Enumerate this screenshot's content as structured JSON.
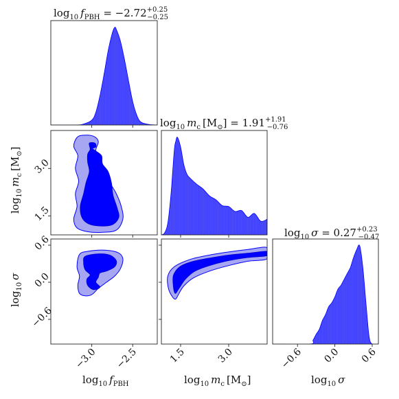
{
  "chart_data": [
    {
      "type": "area",
      "panel": "marginal-fpbh",
      "title": "log₁₀ f_PBH = −2.72",
      "title_main": "log",
      "title_sub": "10",
      "title_var": "f",
      "title_var_sub": "PBH",
      "title_value": " = −2.72",
      "title_err_plus": "+0.25",
      "title_err_minus": "−0.25",
      "color": "#0000ff",
      "fill_opacity": 0.75,
      "xlim": [
        -3.5,
        -2.2
      ],
      "x": [
        -3.5,
        -3.2,
        -3.1,
        -3.0,
        -2.95,
        -2.9,
        -2.85,
        -2.8,
        -2.75,
        -2.72,
        -2.7,
        -2.65,
        -2.6,
        -2.55,
        -2.5,
        -2.45,
        -2.4,
        -2.3,
        -2.2
      ],
      "y": [
        0.0,
        0.0,
        0.01,
        0.05,
        0.13,
        0.3,
        0.52,
        0.76,
        0.94,
        1.0,
        0.98,
        0.86,
        0.67,
        0.45,
        0.24,
        0.1,
        0.03,
        0.005,
        0.0
      ]
    },
    {
      "type": "area",
      "panel": "marginal-mc",
      "title_main": "log",
      "title_sub": "10",
      "title_var": "m",
      "title_var_sub": "c",
      "title_unit": "[M",
      "title_unit_sub": "⊙",
      "title_unit_close": "]",
      "title_value": " = 1.91",
      "title_err_plus": "+1.91",
      "title_err_minus": "−0.76",
      "color": "#0000ff",
      "fill_opacity": 0.75,
      "xlim": [
        0.9,
        4.2
      ],
      "x": [
        0.9,
        1.0,
        1.1,
        1.2,
        1.3,
        1.35,
        1.4,
        1.5,
        1.6,
        1.7,
        1.8,
        2.0,
        2.2,
        2.4,
        2.6,
        2.8,
        3.0,
        3.2,
        3.4,
        3.6,
        3.8,
        4.0,
        4.2
      ],
      "y": [
        0.0,
        0.02,
        0.12,
        0.42,
        0.86,
        0.96,
        1.0,
        0.9,
        0.72,
        0.62,
        0.58,
        0.52,
        0.47,
        0.4,
        0.36,
        0.3,
        0.29,
        0.24,
        0.25,
        0.18,
        0.22,
        0.14,
        0.16
      ]
    },
    {
      "type": "area",
      "panel": "marginal-sigma",
      "title_main": "log",
      "title_sub": "10",
      "title_var": "σ",
      "title_value": " = 0.27",
      "title_err_plus": "+0.23",
      "title_err_minus": "−0.47",
      "color": "#0000ff",
      "fill_opacity": 0.75,
      "xlim": [
        -1.0,
        0.7
      ],
      "x": [
        -1.0,
        -0.4,
        -0.35,
        -0.3,
        -0.25,
        -0.2,
        -0.15,
        -0.1,
        -0.05,
        0.0,
        0.05,
        0.1,
        0.15,
        0.2,
        0.25,
        0.3,
        0.35,
        0.4,
        0.45,
        0.5,
        0.55,
        0.6,
        0.7
      ],
      "y": [
        0.0,
        0.0,
        0.04,
        0.1,
        0.15,
        0.24,
        0.3,
        0.38,
        0.42,
        0.48,
        0.56,
        0.6,
        0.66,
        0.72,
        0.78,
        0.88,
        0.96,
        1.0,
        0.78,
        0.42,
        0.08,
        0.0,
        0.0
      ]
    },
    {
      "type": "contour",
      "panel": "fpbh-vs-mc",
      "xlim": [
        -3.5,
        -2.2
      ],
      "ylim": [
        0.9,
        4.2
      ],
      "outer_contour": [
        [
          -3.18,
          3.98
        ],
        [
          -3.1,
          4.05
        ],
        [
          -2.98,
          4.02
        ],
        [
          -2.92,
          3.85
        ],
        [
          -2.95,
          3.55
        ],
        [
          -2.88,
          3.25
        ],
        [
          -2.86,
          2.9
        ],
        [
          -2.78,
          2.55
        ],
        [
          -2.7,
          2.2
        ],
        [
          -2.64,
          1.8
        ],
        [
          -2.62,
          1.4
        ],
        [
          -2.7,
          1.05
        ],
        [
          -2.88,
          0.98
        ],
        [
          -3.05,
          1.0
        ],
        [
          -3.18,
          1.12
        ],
        [
          -3.22,
          1.4
        ],
        [
          -3.18,
          1.8
        ],
        [
          -3.2,
          2.2
        ],
        [
          -3.16,
          2.6
        ],
        [
          -3.2,
          3.0
        ],
        [
          -3.17,
          3.4
        ],
        [
          -3.22,
          3.7
        ]
      ],
      "inner_contour": [
        [
          -3.03,
          3.8
        ],
        [
          -2.96,
          3.8
        ],
        [
          -2.95,
          3.68
        ],
        [
          -2.99,
          3.63
        ],
        [
          -2.95,
          3.55
        ],
        [
          -2.88,
          3.4
        ],
        [
          -2.87,
          3.15
        ],
        [
          -2.8,
          2.9
        ],
        [
          -2.76,
          2.55
        ],
        [
          -2.74,
          2.15
        ],
        [
          -2.69,
          1.75
        ],
        [
          -2.67,
          1.45
        ],
        [
          -2.75,
          1.22
        ],
        [
          -2.9,
          1.18
        ],
        [
          -3.04,
          1.25
        ],
        [
          -3.12,
          1.45
        ],
        [
          -3.14,
          1.8
        ],
        [
          -3.1,
          2.2
        ],
        [
          -3.07,
          2.55
        ],
        [
          -3.03,
          2.9
        ],
        [
          -3.05,
          3.2
        ],
        [
          -3.05,
          3.45
        ],
        [
          -3.02,
          3.6
        ]
      ],
      "color": "#0000ff"
    },
    {
      "type": "contour",
      "panel": "fpbh-vs-sigma",
      "xlim": [
        -3.5,
        -2.2
      ],
      "ylim": [
        -1.0,
        0.7
      ],
      "outer_contour": [
        [
          -3.15,
          0.45
        ],
        [
          -3.05,
          0.5
        ],
        [
          -2.85,
          0.52
        ],
        [
          -2.68,
          0.48
        ],
        [
          -2.62,
          0.38
        ],
        [
          -2.65,
          0.22
        ],
        [
          -2.72,
          0.1
        ],
        [
          -2.82,
          0.0
        ],
        [
          -2.92,
          -0.1
        ],
        [
          -3.0,
          -0.2
        ],
        [
          -3.08,
          -0.22
        ],
        [
          -3.15,
          -0.18
        ],
        [
          -3.17,
          -0.05
        ],
        [
          -3.15,
          0.1
        ],
        [
          -3.18,
          0.25
        ]
      ],
      "inner_contour": [
        [
          -3.08,
          0.42
        ],
        [
          -2.92,
          0.46
        ],
        [
          -2.78,
          0.44
        ],
        [
          -2.7,
          0.35
        ],
        [
          -2.72,
          0.25
        ],
        [
          -2.82,
          0.18
        ],
        [
          -2.9,
          0.15
        ],
        [
          -2.92,
          0.08
        ],
        [
          -2.95,
          0.0
        ],
        [
          -2.9,
          -0.08
        ],
        [
          -2.98,
          -0.12
        ],
        [
          -3.05,
          -0.05
        ],
        [
          -3.06,
          0.05
        ],
        [
          -3.02,
          0.12
        ],
        [
          -3.08,
          0.2
        ],
        [
          -3.1,
          0.32
        ]
      ],
      "color": "#0000ff"
    },
    {
      "type": "contour",
      "panel": "mc-vs-sigma",
      "xlim": [
        0.9,
        4.2
      ],
      "ylim": [
        -1.0,
        0.7
      ],
      "outer_contour": [
        [
          1.1,
          0.1
        ],
        [
          1.3,
          0.25
        ],
        [
          1.8,
          0.37
        ],
        [
          2.4,
          0.44
        ],
        [
          3.0,
          0.49
        ],
        [
          3.6,
          0.53
        ],
        [
          4.2,
          0.56
        ],
        [
          4.2,
          0.38
        ],
        [
          3.6,
          0.34
        ],
        [
          3.0,
          0.27
        ],
        [
          2.4,
          0.18
        ],
        [
          1.9,
          0.07
        ],
        [
          1.6,
          -0.06
        ],
        [
          1.45,
          -0.18
        ],
        [
          1.35,
          -0.27
        ],
        [
          1.25,
          -0.24
        ],
        [
          1.12,
          -0.1
        ]
      ],
      "inner_contour": [
        [
          1.28,
          0.12
        ],
        [
          1.5,
          0.26
        ],
        [
          1.9,
          0.34
        ],
        [
          2.5,
          0.4
        ],
        [
          3.0,
          0.44
        ],
        [
          3.6,
          0.47
        ],
        [
          4.2,
          0.5
        ],
        [
          4.2,
          0.43
        ],
        [
          3.6,
          0.4
        ],
        [
          3.0,
          0.35
        ],
        [
          2.4,
          0.27
        ],
        [
          1.95,
          0.18
        ],
        [
          1.65,
          0.05
        ],
        [
          1.45,
          -0.1
        ],
        [
          1.33,
          -0.18
        ],
        [
          1.27,
          -0.05
        ]
      ],
      "color": "#0000ff"
    }
  ],
  "axes": {
    "x_fpbh": {
      "label_main": "log",
      "label_sub": "10",
      "label_var": "f",
      "label_var_sub": "PBH",
      "ticks": [
        -3.0,
        -2.5
      ],
      "tick_labels": [
        "−3.0",
        "−2.5"
      ]
    },
    "x_mc": {
      "label_main": "log",
      "label_sub": "10",
      "label_var": "m",
      "label_var_sub": "c",
      "label_unit": "[M",
      "label_unit_sub": "⊙",
      "label_unit_close": "]",
      "ticks": [
        1.5,
        3.0
      ],
      "tick_labels": [
        "1.5",
        "3.0"
      ]
    },
    "x_sigma": {
      "label_main": "log",
      "label_sub": "10",
      "label_var": "σ",
      "ticks": [
        -0.6,
        0.0,
        0.6
      ],
      "tick_labels": [
        "−0.6",
        "0.0",
        "0.6"
      ]
    },
    "y_mc": {
      "label_main": "log",
      "label_sub": "10",
      "label_var": "m",
      "label_var_sub": "c",
      "label_unit": "[M",
      "label_unit_sub": "⊙",
      "label_unit_close": "]",
      "ticks": [
        1.5,
        3.0
      ],
      "tick_labels": [
        "1.5",
        "3.0"
      ]
    },
    "y_sigma": {
      "label_main": "log",
      "label_sub": "10",
      "label_var": "σ",
      "ticks": [
        -0.6,
        0.0,
        0.6
      ],
      "tick_labels": [
        "−0.6",
        "0.0",
        "0.6"
      ]
    }
  }
}
